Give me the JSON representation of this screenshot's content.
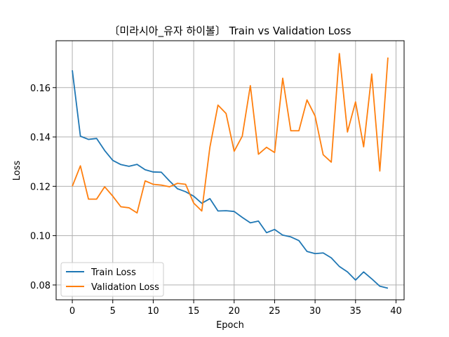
{
  "chart_data": {
    "type": "line",
    "title": "〔미라시아_유자 하이볼〕 Train vs Validation Loss",
    "xlabel": "Epoch",
    "ylabel": "Loss",
    "xlim": [
      -2,
      41
    ],
    "ylim": [
      0.074,
      0.179
    ],
    "xticks": [
      0,
      5,
      10,
      15,
      20,
      25,
      30,
      35,
      40
    ],
    "yticks": [
      0.08,
      0.1,
      0.12,
      0.14,
      0.16
    ],
    "ytick_labels": [
      "0.08",
      "0.10",
      "0.12",
      "0.14",
      "0.16"
    ],
    "grid": true,
    "legend_position": "lower-left",
    "x": [
      0,
      1,
      2,
      3,
      4,
      5,
      6,
      7,
      8,
      9,
      10,
      11,
      12,
      13,
      14,
      15,
      16,
      17,
      18,
      19,
      20,
      21,
      22,
      23,
      24,
      25,
      26,
      27,
      28,
      29,
      30,
      31,
      32,
      33,
      34,
      35,
      36,
      37,
      38,
      39
    ],
    "series": [
      {
        "name": "Train Loss",
        "color": "#1f77b4",
        "values": [
          0.167,
          0.1403,
          0.139,
          0.1394,
          0.1345,
          0.1305,
          0.1288,
          0.1281,
          0.1289,
          0.1267,
          0.1258,
          0.1257,
          0.1222,
          0.119,
          0.1178,
          0.116,
          0.1131,
          0.115,
          0.11,
          0.1101,
          0.1098,
          0.1074,
          0.1052,
          0.1059,
          0.1012,
          0.1025,
          0.1002,
          0.0995,
          0.098,
          0.0936,
          0.0927,
          0.093,
          0.091,
          0.0875,
          0.0853,
          0.082,
          0.0853,
          0.0825,
          0.0795,
          0.0787
        ]
      },
      {
        "name": "Validation Loss",
        "color": "#ff7f0e",
        "values": [
          0.12,
          0.1283,
          0.1148,
          0.1148,
          0.1198,
          0.116,
          0.1117,
          0.1113,
          0.1092,
          0.1222,
          0.1208,
          0.1205,
          0.1198,
          0.1212,
          0.1208,
          0.1132,
          0.11,
          0.1358,
          0.1529,
          0.1495,
          0.1342,
          0.1403,
          0.1608,
          0.133,
          0.1358,
          0.1337,
          0.1638,
          0.1425,
          0.1425,
          0.155,
          0.1485,
          0.1328,
          0.1298,
          0.1738,
          0.142,
          0.1542,
          0.136,
          0.1655,
          0.1262,
          0.1722
        ]
      }
    ]
  }
}
